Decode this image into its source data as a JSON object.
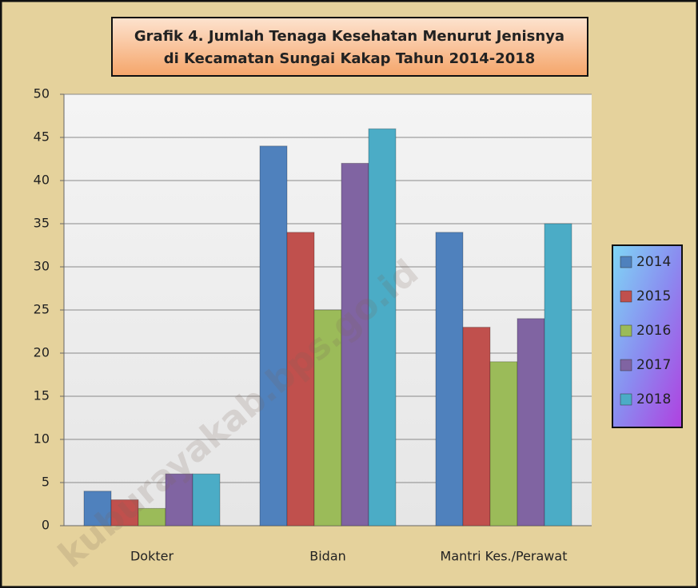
{
  "chart_data": {
    "type": "bar",
    "title": [
      "Grafik 4. Jumlah Tenaga Kesehatan Menurut Jenisnya",
      "di Kecamatan Sungai Kakap Tahun 2014-2018"
    ],
    "watermark": "kuburayakab.bps.go.id",
    "categories": [
      "Dokter",
      "Bidan",
      "Mantri Kes./Perawat"
    ],
    "series": [
      {
        "name": "2014",
        "color": "#4f81bd",
        "values": [
          4,
          44,
          34
        ]
      },
      {
        "name": "2015",
        "color": "#c0504d",
        "values": [
          3,
          34,
          23
        ]
      },
      {
        "name": "2016",
        "color": "#9bbb59",
        "values": [
          2,
          25,
          19
        ]
      },
      {
        "name": "2017",
        "color": "#8064a2",
        "values": [
          6,
          42,
          24
        ]
      },
      {
        "name": "2018",
        "color": "#4bacc6",
        "values": [
          6,
          46,
          35
        ]
      }
    ],
    "ylim": [
      0,
      50
    ],
    "yticks": [
      0,
      5,
      10,
      15,
      20,
      25,
      30,
      35,
      40,
      45,
      50
    ],
    "grid": true,
    "legend": "right"
  }
}
